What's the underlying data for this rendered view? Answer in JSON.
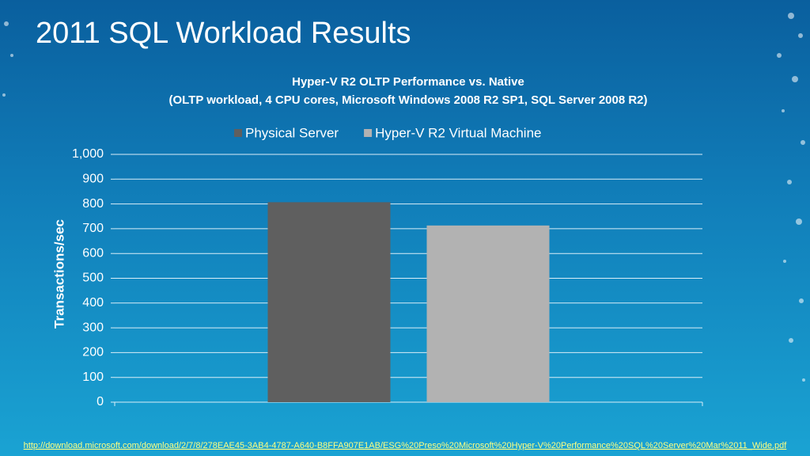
{
  "slide_title": "2011 SQL Workload Results",
  "source_url": "http://download.microsoft.com/download/2/7/8/278EAE45-3AB4-4787-A640-B8FFA907E1AB/ESG%20Preso%20Microsoft%20Hyper-V%20Performance%20SQL%20Server%20Mar%2011_Wide.pdf",
  "chart_data": {
    "type": "bar",
    "title": "Hyper-V R2 OLTP Performance vs. Native",
    "subtitle": "(OLTP workload, 4  CPU cores,  Microsoft Windows 2008 R2 SP1, SQL Server 2008 R2)",
    "y_label": "Transactions/sec",
    "categories": [
      null
    ],
    "series": [
      {
        "name": "Physical  Server",
        "color": "#5f5f5f",
        "values": [
          807
        ]
      },
      {
        "name": "Hyper-V R2 Virtual Machine",
        "color": "#b2b2b2",
        "values": [
          713
        ]
      }
    ],
    "ylim": [
      0,
      1000
    ],
    "yticks": [
      0,
      100,
      200,
      300,
      400,
      500,
      600,
      700,
      800,
      900,
      {
        "value": 1000,
        "label": "1,000"
      }
    ],
    "grid": true,
    "legend": "top"
  }
}
